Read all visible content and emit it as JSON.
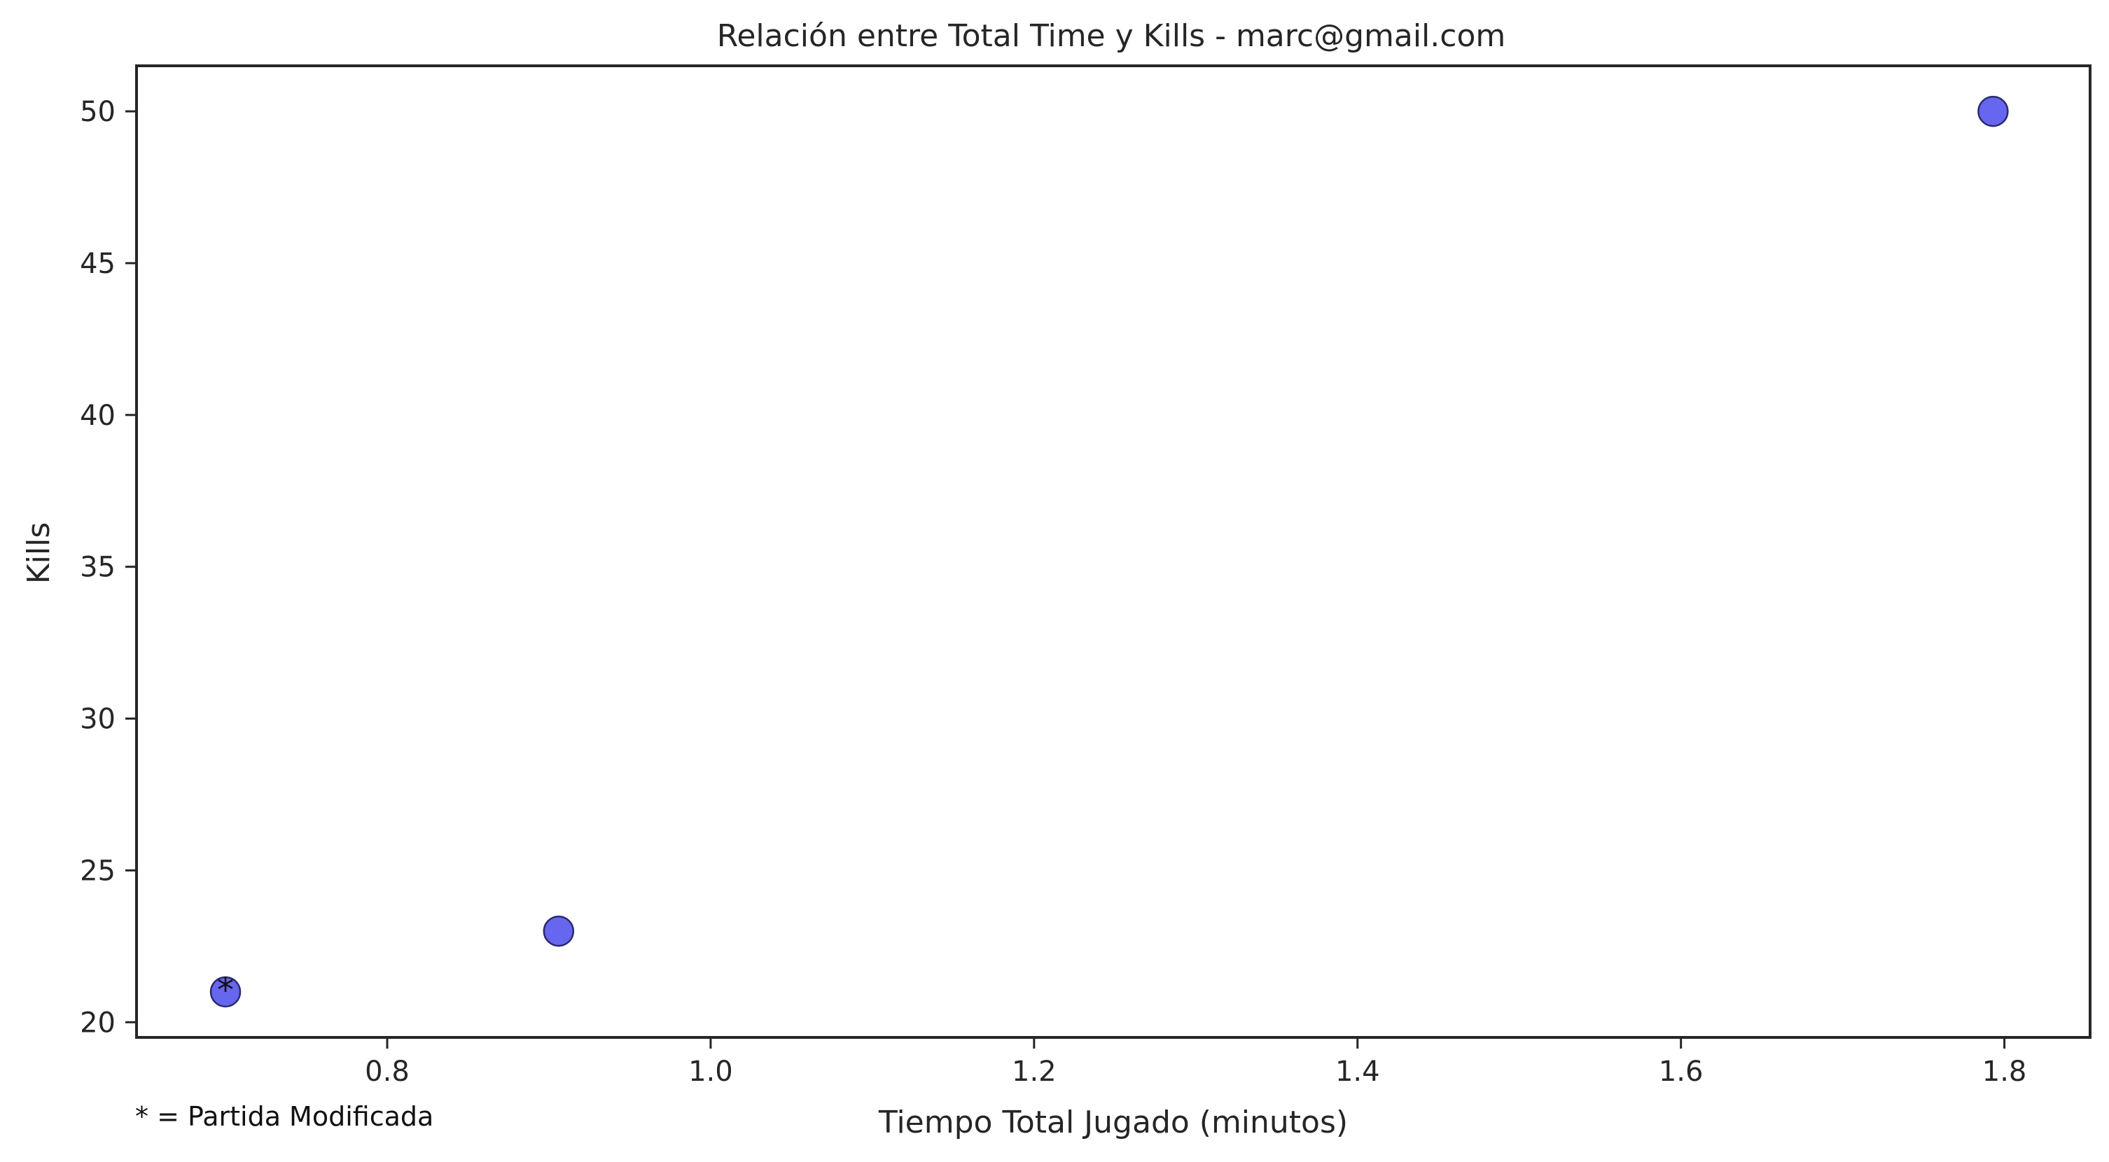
{
  "chart_data": {
    "type": "scatter",
    "title": "Relación entre Total Time y Kills - marc@gmail.com",
    "xlabel": "Tiempo Total Jugado (minutos)",
    "ylabel": "Kills",
    "xlim": [
      0.645,
      1.853
    ],
    "ylim": [
      19.5,
      51.5
    ],
    "xticks": [
      0.8,
      1.0,
      1.2,
      1.4,
      1.6,
      1.8
    ],
    "xtick_labels": [
      "0.8",
      "1.0",
      "1.2",
      "1.4",
      "1.6",
      "1.8"
    ],
    "yticks": [
      20,
      25,
      30,
      35,
      40,
      45,
      50
    ],
    "ytick_labels": [
      "20",
      "25",
      "30",
      "35",
      "40",
      "45",
      "50"
    ],
    "grid": false,
    "marker_color": "#6666ee",
    "marker_edge_color": "#2a2a6e",
    "points": [
      {
        "x": 0.7,
        "y": 21,
        "marker_label": "*"
      },
      {
        "x": 0.906,
        "y": 23,
        "marker_label": ""
      },
      {
        "x": 1.793,
        "y": 50,
        "marker_label": ""
      }
    ],
    "footnote": "* = Partida Modificada"
  }
}
